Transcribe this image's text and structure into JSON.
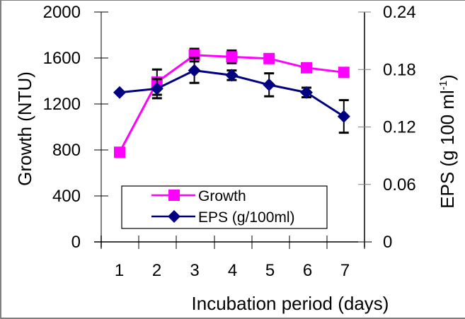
{
  "chart_data": {
    "type": "line",
    "title": "",
    "xlabel": "Incubation period (days)",
    "ylabel": "Growth (NTU)",
    "y2label": "EPS (g 100 ml-1)",
    "y2label_main": "EPS (g 100 ml",
    "y2label_sup": "-1",
    "y2label_close": ")",
    "categories": [
      "1",
      "2",
      "3",
      "4",
      "5",
      "6",
      "7"
    ],
    "ylim": [
      0,
      2000
    ],
    "y_ticks": [
      "0",
      "400",
      "800",
      "1200",
      "1600",
      "2000"
    ],
    "y_tick_values": [
      0,
      400,
      800,
      1200,
      1600,
      2000
    ],
    "y2lim": [
      0,
      0.24
    ],
    "y2_ticks": [
      "0",
      "0.06",
      "0.12",
      "0.18",
      "0.24"
    ],
    "y2_tick_values": [
      0,
      0.06,
      0.12,
      0.18,
      0.24
    ],
    "grid": false,
    "legend_position": "lower-center",
    "series": [
      {
        "name": "Growth",
        "axis": "left",
        "color": "#ff00ff",
        "marker": "square",
        "values": [
          780,
          1390,
          1625,
          1610,
          1595,
          1515,
          1475
        ],
        "errors": [
          0,
          110,
          55,
          55,
          0,
          35,
          35
        ]
      },
      {
        "name": "EPS (g/100ml)",
        "axis": "right",
        "color": "#000080",
        "marker": "diamond",
        "values": [
          0.156,
          0.16,
          0.179,
          0.174,
          0.164,
          0.156,
          0.131
        ],
        "errors": [
          0,
          0.01,
          0.013,
          0.005,
          0.012,
          0.005,
          0.017
        ]
      }
    ]
  }
}
